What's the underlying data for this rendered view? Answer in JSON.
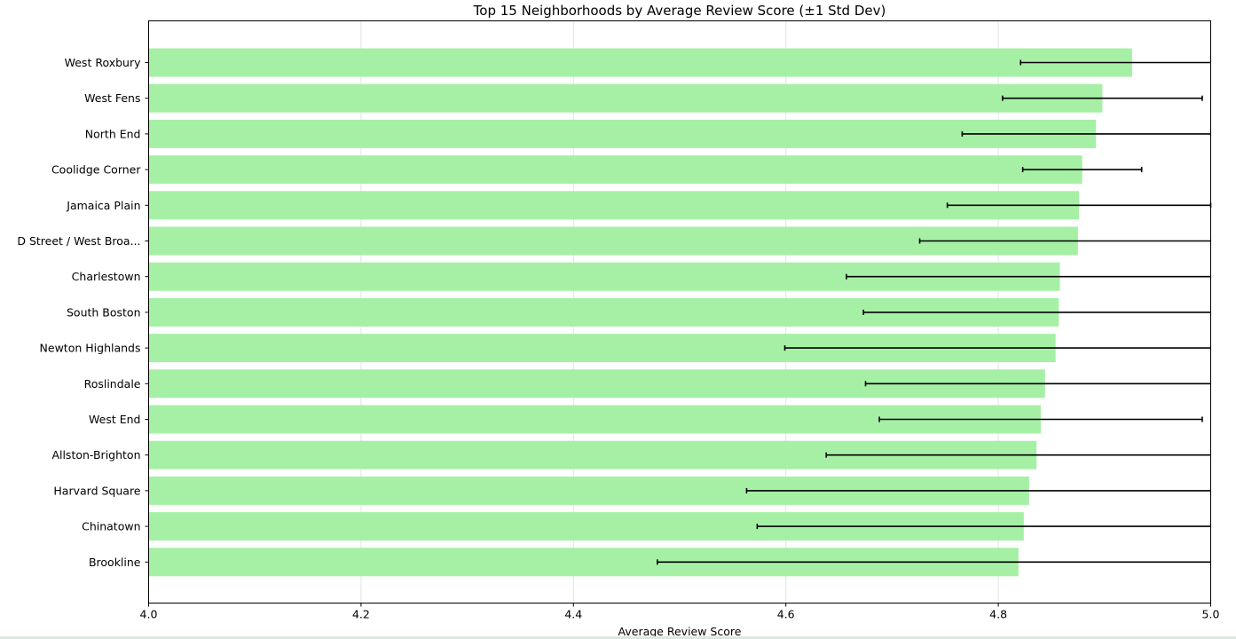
{
  "chart_data": {
    "type": "bar",
    "orientation": "horizontal",
    "title": "Top 15 Neighborhoods by Average Review Score (±1 Std Dev)",
    "xlabel": "Average Review Score",
    "ylabel": "",
    "xlim": [
      4.0,
      5.0
    ],
    "xticks": [
      "4.0",
      "4.2",
      "4.4",
      "4.6",
      "4.8",
      "5.0"
    ],
    "grid": "x",
    "bar_color": "#a6f0a6",
    "error_bar_color": "#000000",
    "categories": [
      "West Roxbury",
      "West Fens",
      "North End",
      "Coolidge Corner",
      "Jamaica Plain",
      "D Street / West Broa...",
      "Charlestown",
      "South Boston",
      "Newton Highlands",
      "Roslindale",
      "West End",
      "Allston-Brighton",
      "Harvard Square",
      "Chinatown",
      "Brookline"
    ],
    "values": [
      4.926,
      4.898,
      4.892,
      4.879,
      4.876,
      4.875,
      4.858,
      4.857,
      4.854,
      4.844,
      4.84,
      4.836,
      4.829,
      4.824,
      4.819
    ],
    "std_dev": [
      0.105,
      0.094,
      0.126,
      0.056,
      0.124,
      0.149,
      0.201,
      0.184,
      0.255,
      0.169,
      0.152,
      0.198,
      0.266,
      0.251,
      0.34
    ]
  }
}
